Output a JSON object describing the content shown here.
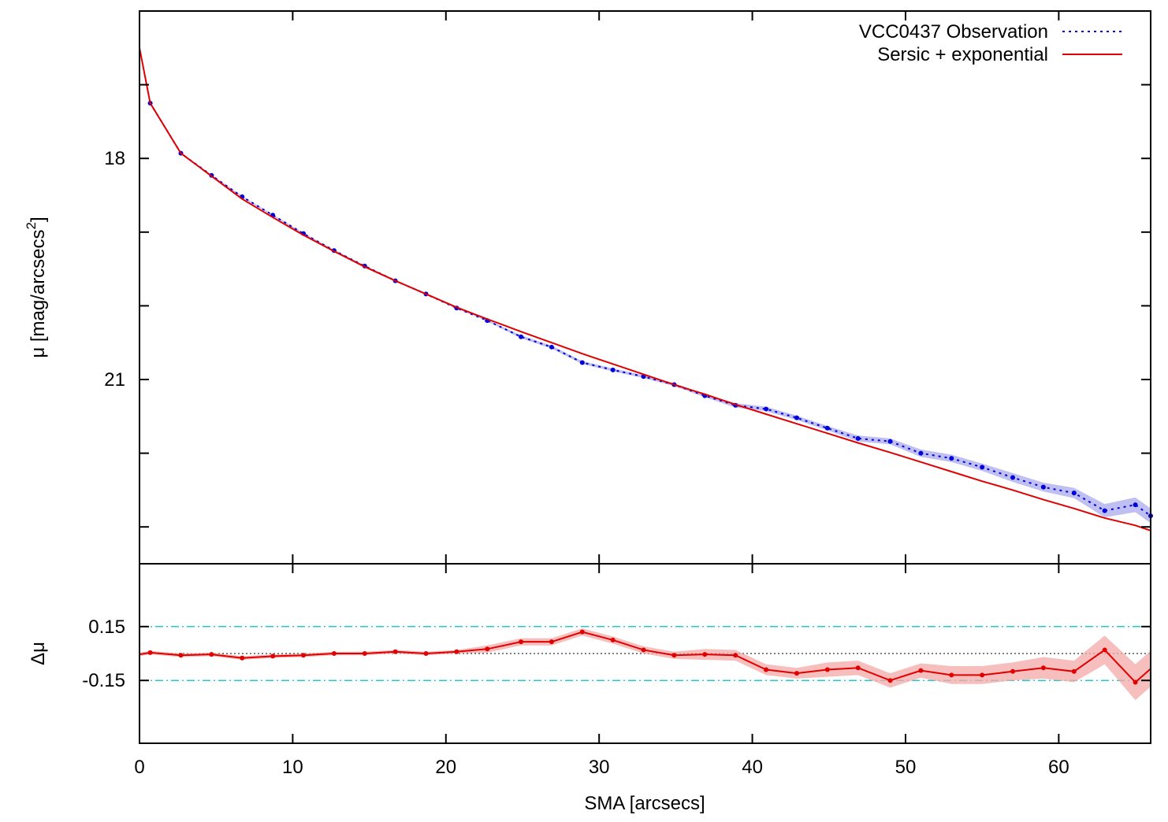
{
  "chart_data": [
    {
      "type": "line",
      "panel": "profile",
      "ylabel": "μ [mag/arcsecs²]",
      "ylabel_main": "μ [mag/arcsecs",
      "ylabel_sup": "2",
      "ylabel_close": "]",
      "y_reversed": true,
      "xlim": [
        0,
        66
      ],
      "ylim": [
        16.0,
        23.5
      ],
      "yticks": [
        18,
        21
      ],
      "ytick_labels": [
        "18",
        "21"
      ],
      "legend_position": "top-right",
      "series": [
        {
          "name": "VCC0437 Observation",
          "style": "dotted",
          "color": "#0000dd",
          "band_color": "#8a8ae6",
          "x": [
            0.7,
            2.7,
            4.7,
            6.7,
            8.7,
            10.7,
            12.7,
            14.7,
            16.7,
            18.7,
            20.7,
            22.7,
            24.9,
            26.9,
            28.9,
            30.9,
            32.9,
            34.9,
            36.9,
            38.9,
            40.9,
            42.9,
            44.9,
            46.9,
            49.0,
            51.0,
            53.0,
            55.0,
            57.0,
            59.0,
            61.0,
            63.0,
            65.0,
            66.0
          ],
          "y": [
            17.25,
            17.93,
            18.23,
            18.52,
            18.77,
            19.02,
            19.25,
            19.46,
            19.66,
            19.84,
            20.03,
            20.2,
            20.42,
            20.56,
            20.77,
            20.87,
            20.96,
            21.07,
            21.22,
            21.35,
            21.4,
            21.52,
            21.66,
            21.8,
            21.84,
            22.0,
            22.07,
            22.19,
            22.33,
            22.46,
            22.54,
            22.78,
            22.7,
            22.85
          ],
          "band": [
            0.01,
            0.01,
            0.01,
            0.01,
            0.01,
            0.01,
            0.01,
            0.01,
            0.01,
            0.01,
            0.01,
            0.01,
            0.02,
            0.02,
            0.02,
            0.02,
            0.02,
            0.02,
            0.02,
            0.03,
            0.03,
            0.03,
            0.03,
            0.04,
            0.04,
            0.05,
            0.05,
            0.05,
            0.06,
            0.06,
            0.07,
            0.09,
            0.1,
            0.1
          ]
        },
        {
          "name": "Sersic + exponential",
          "style": "solid",
          "color": "#e00000",
          "x": [
            0,
            0.7,
            2.7,
            4.7,
            6.7,
            8.7,
            10.7,
            12.7,
            14.7,
            16.7,
            18.7,
            20.7,
            22.7,
            24.9,
            26.9,
            28.9,
            30.9,
            32.9,
            34.9,
            36.9,
            38.9,
            40.9,
            42.9,
            44.9,
            46.9,
            49.0,
            51.0,
            53.0,
            55.0,
            57.0,
            59.0,
            61.0,
            63.0,
            65.0,
            66.0
          ],
          "y": [
            16.5,
            17.25,
            17.93,
            18.24,
            18.55,
            18.8,
            19.04,
            19.26,
            19.47,
            19.66,
            19.84,
            20.02,
            20.18,
            20.35,
            20.5,
            20.65,
            20.79,
            20.93,
            21.07,
            21.2,
            21.34,
            21.47,
            21.6,
            21.73,
            21.86,
            21.99,
            22.12,
            22.25,
            22.38,
            22.5,
            22.63,
            22.75,
            22.88,
            22.98,
            23.05
          ]
        }
      ]
    },
    {
      "type": "line",
      "panel": "residuals",
      "xlabel": "SMA [arcsecs]",
      "ylabel": "Δμ",
      "xlim": [
        0,
        66
      ],
      "ylim": [
        -0.5,
        0.5
      ],
      "xticks": [
        0,
        10,
        20,
        30,
        40,
        50,
        60
      ],
      "xtick_labels": [
        "0",
        "10",
        "20",
        "30",
        "40",
        "50",
        "60"
      ],
      "yticks": [
        0.15,
        -0.15
      ],
      "ytick_labels": [
        "0.15",
        "-0.15"
      ],
      "reference_lines": [
        0.15,
        -0.15
      ],
      "zero_line": 0,
      "series": [
        {
          "name": "",
          "color": "#e00000",
          "band_color": "#f4a8a8",
          "x": [
            0,
            0.7,
            2.7,
            4.7,
            6.7,
            8.7,
            10.7,
            12.7,
            14.7,
            16.7,
            18.7,
            20.7,
            22.7,
            24.9,
            26.9,
            28.9,
            30.9,
            32.9,
            34.9,
            36.9,
            38.9,
            40.9,
            42.9,
            44.9,
            46.9,
            49.0,
            51.0,
            53.0,
            55.0,
            57.0,
            59.0,
            61.0,
            63.0,
            65.0,
            66.0
          ],
          "y": [
            -0.005,
            0.005,
            -0.01,
            -0.005,
            -0.025,
            -0.015,
            -0.01,
            0.0,
            0.0,
            0.01,
            0.0,
            0.01,
            0.025,
            0.065,
            0.065,
            0.12,
            0.075,
            0.02,
            -0.01,
            -0.005,
            -0.01,
            -0.09,
            -0.11,
            -0.09,
            -0.08,
            -0.15,
            -0.095,
            -0.12,
            -0.12,
            -0.1,
            -0.08,
            -0.1,
            0.02,
            -0.16,
            -0.085
          ],
          "band": [
            0.01,
            0.01,
            0.01,
            0.01,
            0.01,
            0.01,
            0.01,
            0.01,
            0.01,
            0.01,
            0.01,
            0.01,
            0.02,
            0.02,
            0.02,
            0.02,
            0.02,
            0.02,
            0.02,
            0.03,
            0.03,
            0.03,
            0.03,
            0.04,
            0.04,
            0.04,
            0.04,
            0.05,
            0.05,
            0.05,
            0.06,
            0.06,
            0.08,
            0.1,
            0.1
          ]
        }
      ]
    }
  ]
}
